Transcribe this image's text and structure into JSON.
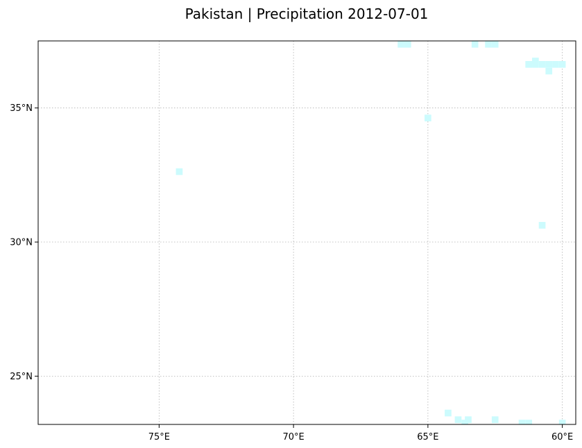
{
  "title": "Pakistan | Precipitation 2012-07-01",
  "chart_data": {
    "type": "heatmap",
    "title": "Pakistan | Precipitation 2012-07-01",
    "projection": "map, longitude increasing to the left",
    "x_axis": {
      "quantity": "longitude",
      "range": [
        79.5,
        59.5
      ],
      "ticks": [
        75,
        70,
        65,
        60
      ],
      "tick_labels": [
        "75°E",
        "70°E",
        "65°E",
        "60°E"
      ]
    },
    "y_axis": {
      "quantity": "latitude",
      "range": [
        23.2,
        37.5
      ],
      "ticks": [
        35,
        30,
        25
      ],
      "tick_labels": [
        "35°N",
        "30°N",
        "25°N"
      ]
    },
    "grid": "dotted",
    "cell_size_deg": 0.25,
    "cell_color": "#ccfbfd",
    "cells": [
      {
        "lon": 66.0,
        "lat": 37.375
      },
      {
        "lon": 65.75,
        "lat": 37.375
      },
      {
        "lon": 63.25,
        "lat": 37.375
      },
      {
        "lon": 62.75,
        "lat": 37.375
      },
      {
        "lon": 62.5,
        "lat": 37.375
      },
      {
        "lon": 61.0,
        "lat": 36.75
      },
      {
        "lon": 61.25,
        "lat": 36.625
      },
      {
        "lon": 61.0,
        "lat": 36.625
      },
      {
        "lon": 60.75,
        "lat": 36.625
      },
      {
        "lon": 60.5,
        "lat": 36.625
      },
      {
        "lon": 60.25,
        "lat": 36.625
      },
      {
        "lon": 60.0,
        "lat": 36.625
      },
      {
        "lon": 60.5,
        "lat": 36.375
      },
      {
        "lon": 65.0,
        "lat": 34.625
      },
      {
        "lon": 74.25,
        "lat": 32.625
      },
      {
        "lon": 60.75,
        "lat": 30.625
      },
      {
        "lon": 64.25,
        "lat": 23.625
      },
      {
        "lon": 63.875,
        "lat": 23.375
      },
      {
        "lon": 63.5,
        "lat": 23.375
      },
      {
        "lon": 63.625,
        "lat": 23.25
      },
      {
        "lon": 62.5,
        "lat": 23.375
      },
      {
        "lon": 61.5,
        "lat": 23.25
      },
      {
        "lon": 61.25,
        "lat": 23.25
      },
      {
        "lon": 60.0,
        "lat": 23.25
      }
    ]
  }
}
